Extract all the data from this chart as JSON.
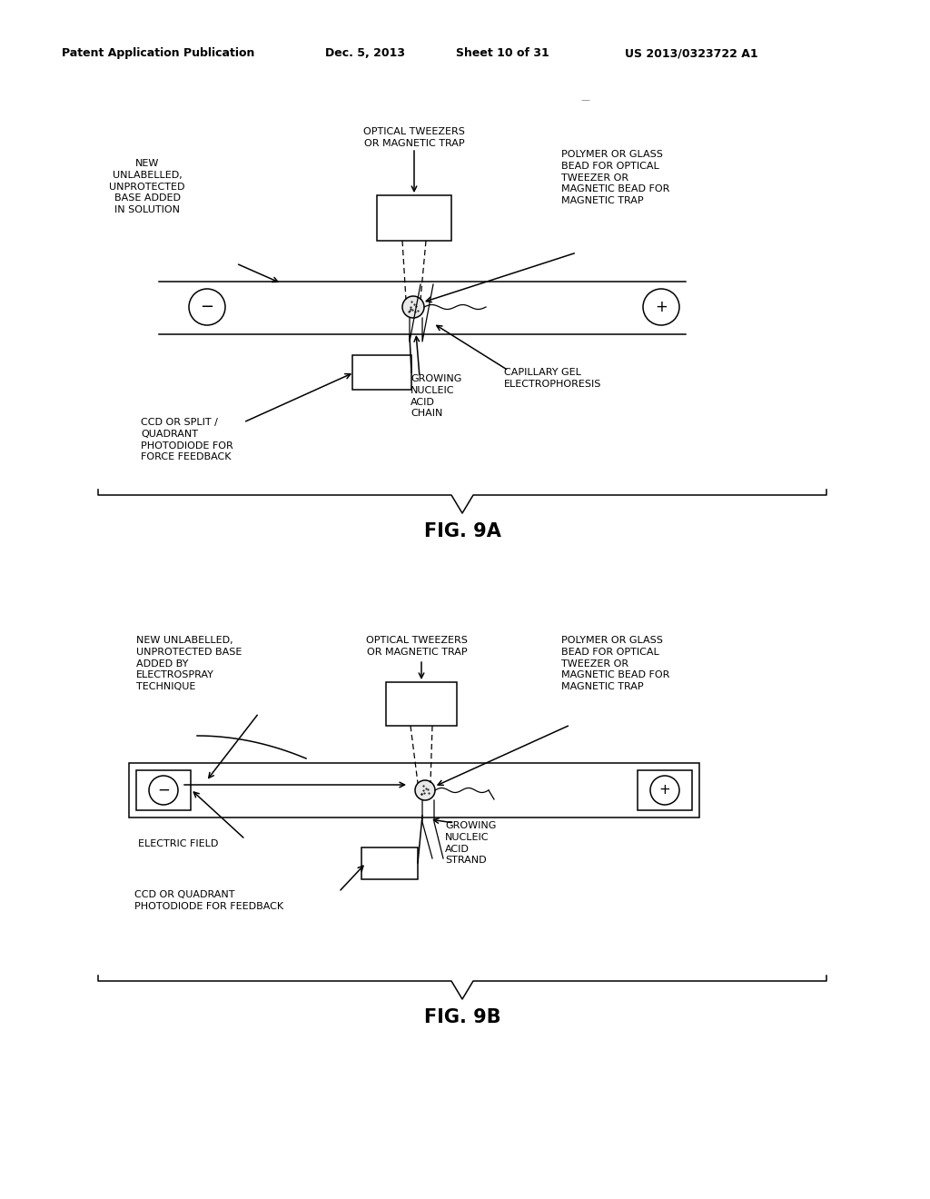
{
  "bg_color": "#ffffff",
  "header_text": "Patent Application Publication",
  "header_date": "Dec. 5, 2013",
  "header_sheet": "Sheet 10 of 31",
  "header_patent": "US 2013/0323722 A1",
  "fig9a_label": "FIG. 9A",
  "fig9b_label": "FIG. 9B"
}
